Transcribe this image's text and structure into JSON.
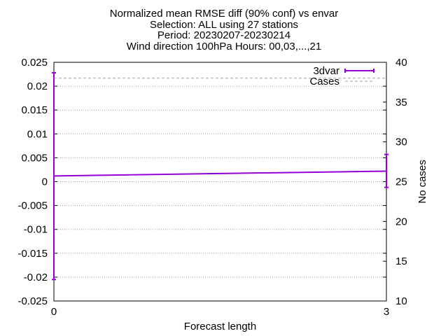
{
  "chart_data": {
    "type": "line",
    "title_lines": [
      "Normalized mean RMSE diff (90% conf) vs envar",
      "Selection: ALL using    27 stations",
      "Period: 20230207-20230214",
      "Wind direction 100hPa   Hours: 00,03,...,21"
    ],
    "xlabel": "Forecast length",
    "ylabel": "",
    "y2label": "No cases",
    "xlim": [
      0,
      3
    ],
    "ylim": [
      -0.025,
      0.025
    ],
    "y2lim": [
      10,
      40
    ],
    "x_ticks": [
      "0",
      "3"
    ],
    "y_ticks": [
      "0.025",
      "0.02",
      "0.015",
      "0.01",
      "0.005",
      "0",
      "-0.005",
      "-0.01",
      "-0.015",
      "-0.02",
      "-0.025"
    ],
    "y2_ticks": [
      "40",
      "35",
      "30",
      "25",
      "20",
      "15",
      "10"
    ],
    "grid": true,
    "legend_position": "top-right",
    "colors": {
      "3dvar": "#9400d3",
      "Cases": "#a0a0a0"
    },
    "series": [
      {
        "name": "3dvar",
        "axis": "y",
        "style": "line-errorbars",
        "x": [
          0,
          3
        ],
        "y": [
          0.0012,
          0.0022
        ],
        "err_low": [
          -0.0205,
          -0.0012
        ],
        "err_high": [
          0.0228,
          0.0057
        ]
      },
      {
        "name": "Cases",
        "axis": "y2",
        "style": "dashed",
        "x": [
          0,
          3
        ],
        "y": [
          38,
          38
        ]
      }
    ]
  }
}
